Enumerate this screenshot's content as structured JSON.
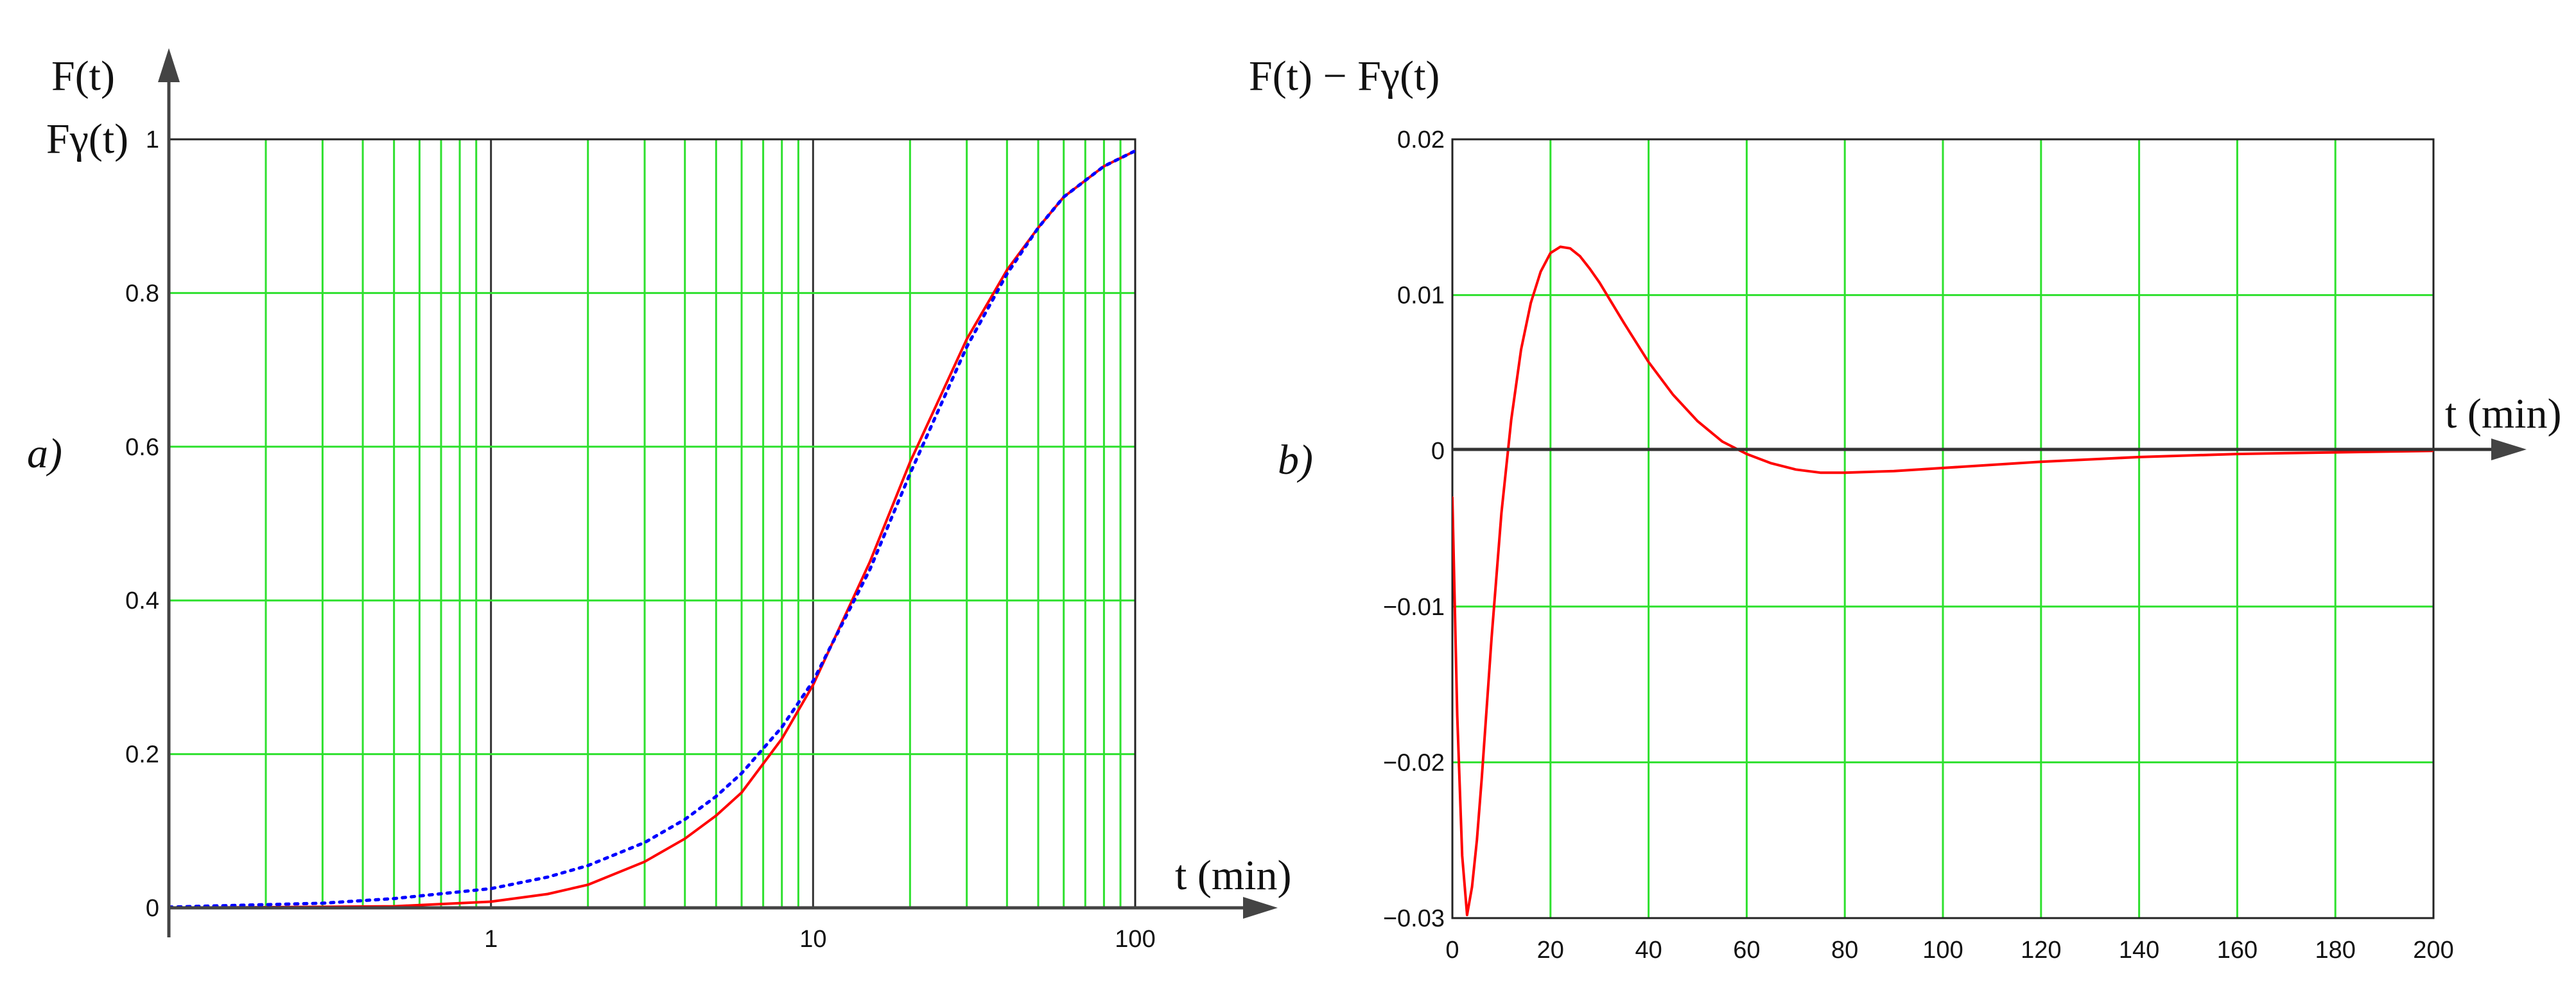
{
  "chart_data": [
    {
      "id": "a",
      "type": "line",
      "panel_label": "a)",
      "ylabel_1": "F(t)",
      "ylabel_2": "Fγ(t)",
      "xlabel": "t (min)",
      "x_scale": "log",
      "xlim": [
        0.1,
        100
      ],
      "ylim": [
        0,
        1
      ],
      "x_tick_labels": [
        "1",
        "10",
        "100"
      ],
      "y_tick_labels": [
        "0",
        "0.2",
        "0.4",
        "0.6",
        "0.8",
        "1"
      ],
      "grid": true,
      "series": [
        {
          "style": "solid",
          "color": "#ff0000",
          "x": [
            0.1,
            0.5,
            1,
            1.5,
            2,
            3,
            4,
            5,
            6,
            8,
            10,
            15,
            20,
            30,
            40,
            50,
            60,
            80,
            100
          ],
          "y": [
            0.0,
            0.002,
            0.008,
            0.018,
            0.03,
            0.06,
            0.09,
            0.12,
            0.15,
            0.22,
            0.29,
            0.45,
            0.58,
            0.74,
            0.83,
            0.885,
            0.925,
            0.965,
            0.985
          ]
        },
        {
          "style": "dotted",
          "color": "#0000ff",
          "x": [
            0.1,
            0.3,
            0.5,
            1,
            1.5,
            2,
            3,
            4,
            5,
            6,
            8,
            10,
            15,
            20,
            30,
            40,
            50,
            60,
            80,
            100
          ],
          "y": [
            0.001,
            0.006,
            0.012,
            0.025,
            0.04,
            0.055,
            0.085,
            0.115,
            0.145,
            0.175,
            0.235,
            0.295,
            0.44,
            0.565,
            0.73,
            0.825,
            0.885,
            0.925,
            0.965,
            0.985
          ]
        }
      ]
    },
    {
      "id": "b",
      "type": "line",
      "panel_label": "b)",
      "ylabel": "F(t) − Fγ(t)",
      "xlabel": "t (min)",
      "xlim": [
        0,
        200
      ],
      "ylim": [
        -0.03,
        0.02
      ],
      "x_tick_labels": [
        "0",
        "20",
        "40",
        "60",
        "80",
        "100",
        "120",
        "140",
        "160",
        "180",
        "200"
      ],
      "y_tick_labels": [
        "0.02",
        "0.01",
        "0",
        "−0.01",
        "−0.02",
        "−0.03"
      ],
      "grid": true,
      "series": [
        {
          "style": "solid",
          "color": "#ff0000",
          "x": [
            0,
            1,
            2,
            3,
            4,
            5,
            6,
            8,
            10,
            12,
            14,
            16,
            18,
            20,
            22,
            24,
            26,
            28,
            30,
            35,
            40,
            45,
            50,
            55,
            60,
            65,
            70,
            75,
            80,
            90,
            100,
            120,
            140,
            160,
            180,
            200
          ],
          "y": [
            -0.003,
            -0.017,
            -0.026,
            -0.0298,
            -0.028,
            -0.025,
            -0.021,
            -0.012,
            -0.004,
            0.002,
            0.0065,
            0.0095,
            0.0115,
            0.0127,
            0.0131,
            0.013,
            0.0125,
            0.0117,
            0.0108,
            0.0082,
            0.0057,
            0.0036,
            0.0019,
            0.0006,
            -0.0002,
            -0.0008,
            -0.0012,
            -0.0014,
            -0.0014,
            -0.0013,
            -0.0011,
            -0.0007,
            -0.0004,
            -0.0002,
            -0.0001,
            0.0
          ]
        }
      ]
    }
  ]
}
